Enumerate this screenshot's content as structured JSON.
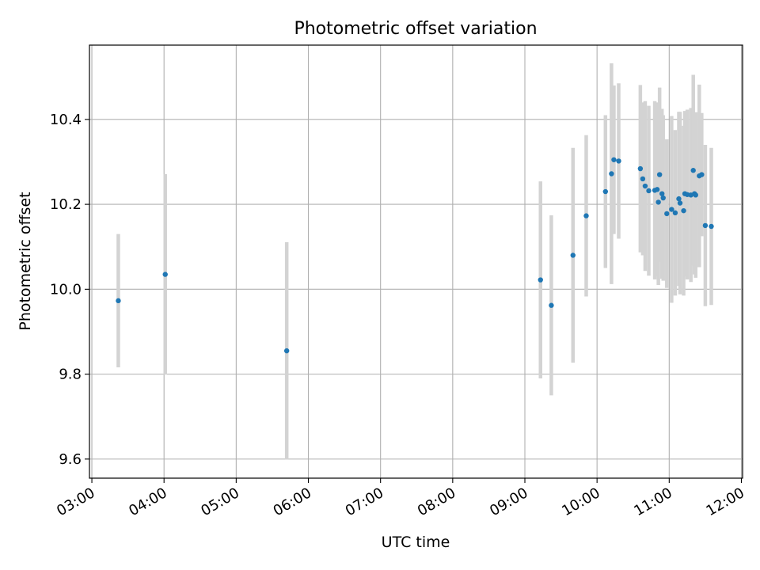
{
  "chart_data": {
    "type": "scatter",
    "title": "Photometric offset variation",
    "xlabel": "UTC time",
    "ylabel": "Photometric offset",
    "xlim": [
      "02:58",
      "12:01"
    ],
    "ylim": [
      9.555,
      10.575
    ],
    "x_ticks": [
      "03:00",
      "04:00",
      "05:00",
      "06:00",
      "07:00",
      "08:00",
      "09:00",
      "10:00",
      "11:00",
      "12:00"
    ],
    "y_ticks": [
      "9.6",
      "9.8",
      "10.0",
      "10.2",
      "10.4"
    ],
    "grid": true,
    "colors": {
      "point": "#1f77b4",
      "errorbar": "#d3d3d3",
      "grid": "#b0b0b0"
    },
    "points": [
      {
        "x": "03:22",
        "y": 9.973,
        "err": 0.157
      },
      {
        "x": "04:01",
        "y": 10.035,
        "err": 0.236
      },
      {
        "x": "05:42",
        "y": 9.855,
        "err": 0.256
      },
      {
        "x": "09:13",
        "y": 10.022,
        "err": 0.232
      },
      {
        "x": "09:22",
        "y": 9.962,
        "err": 0.212
      },
      {
        "x": "09:40",
        "y": 10.08,
        "err": 0.253
      },
      {
        "x": "09:51",
        "y": 10.173,
        "err": 0.19
      },
      {
        "x": "10:07",
        "y": 10.23,
        "err": 0.18
      },
      {
        "x": "10:12",
        "y": 10.272,
        "err": 0.26
      },
      {
        "x": "10:14",
        "y": 10.305,
        "err": 0.175
      },
      {
        "x": "10:18",
        "y": 10.302,
        "err": 0.183
      },
      {
        "x": "10:36",
        "y": 10.284,
        "err": 0.197
      },
      {
        "x": "10:38",
        "y": 10.26,
        "err": 0.18
      },
      {
        "x": "10:40",
        "y": 10.243,
        "err": 0.2
      },
      {
        "x": "10:43",
        "y": 10.232,
        "err": 0.2
      },
      {
        "x": "10:48",
        "y": 10.233,
        "err": 0.21
      },
      {
        "x": "10:50",
        "y": 10.235,
        "err": 0.205
      },
      {
        "x": "10:51",
        "y": 10.205,
        "err": 0.195
      },
      {
        "x": "10:52",
        "y": 10.27,
        "err": 0.205
      },
      {
        "x": "10:54",
        "y": 10.225,
        "err": 0.2
      },
      {
        "x": "10:55",
        "y": 10.215,
        "err": 0.195
      },
      {
        "x": "10:58",
        "y": 10.178,
        "err": 0.175
      },
      {
        "x": "11:02",
        "y": 10.188,
        "err": 0.22
      },
      {
        "x": "11:05",
        "y": 10.18,
        "err": 0.195
      },
      {
        "x": "11:08",
        "y": 10.213,
        "err": 0.205
      },
      {
        "x": "11:09",
        "y": 10.203,
        "err": 0.215
      },
      {
        "x": "11:12",
        "y": 10.185,
        "err": 0.2
      },
      {
        "x": "11:13",
        "y": 10.225,
        "err": 0.195
      },
      {
        "x": "11:15",
        "y": 10.223,
        "err": 0.2
      },
      {
        "x": "11:18",
        "y": 10.222,
        "err": 0.205
      },
      {
        "x": "11:20",
        "y": 10.28,
        "err": 0.225
      },
      {
        "x": "11:21",
        "y": 10.225,
        "err": 0.19
      },
      {
        "x": "11:22",
        "y": 10.222,
        "err": 0.195
      },
      {
        "x": "11:25",
        "y": 10.267,
        "err": 0.215
      },
      {
        "x": "11:27",
        "y": 10.27,
        "err": 0.145
      },
      {
        "x": "11:30",
        "y": 10.15,
        "err": 0.19
      },
      {
        "x": "11:35",
        "y": 10.148,
        "err": 0.185
      }
    ]
  }
}
